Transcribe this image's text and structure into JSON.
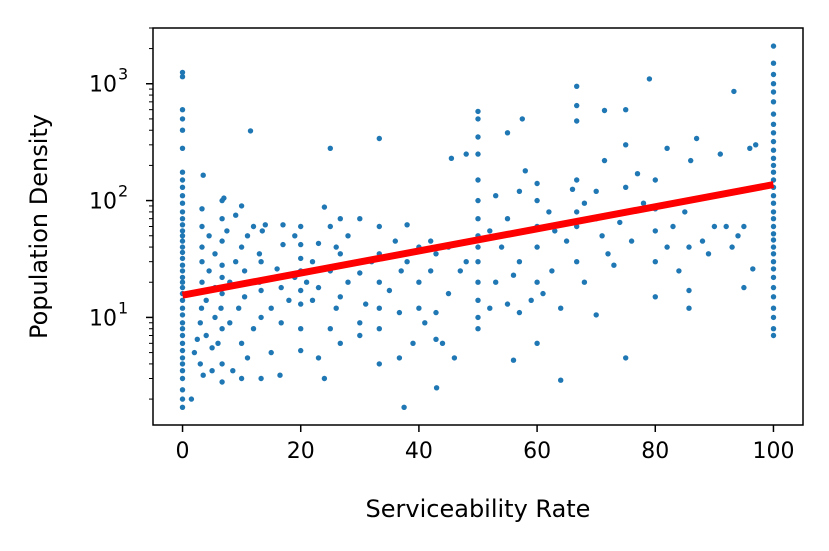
{
  "chart_data": {
    "type": "scatter",
    "xlabel": "Serviceability Rate",
    "ylabel": "Population Density",
    "xlim": [
      -5,
      105
    ],
    "ylim": [
      1.2,
      3000
    ],
    "yscale": "log",
    "grid": false,
    "x_ticks": [
      0,
      20,
      40,
      60,
      80,
      100
    ],
    "x_tick_labels": [
      "0",
      "20",
      "40",
      "60",
      "80",
      "100"
    ],
    "y_ticks": [
      10,
      100,
      1000
    ],
    "y_tick_labels": [
      {
        "base": "10",
        "exp": "1"
      },
      {
        "base": "10",
        "exp": "2"
      },
      {
        "base": "10",
        "exp": "3"
      }
    ],
    "point_color": "#1f77b4",
    "fit_line_color": "#ff0000",
    "fit_line": {
      "x": [
        0,
        100
      ],
      "y": [
        15.5,
        137
      ]
    },
    "scatter_groups": [
      {
        "x": 0,
        "y": [
          1.7,
          2.0,
          2.4,
          3.0,
          3.5,
          4.0,
          4.5,
          5.2,
          6.0,
          7.0,
          8.0,
          9.0,
          10.5,
          12.0,
          14.0,
          16.0,
          18.0,
          20.0,
          22.0,
          25.0,
          28.0,
          32.0,
          36.0,
          40.0,
          45.0,
          50.0,
          55.0,
          62.0,
          70.0,
          80.0,
          95.0,
          110.0,
          130.0,
          150.0,
          175.0,
          280.0,
          400.0,
          500.0,
          600.0,
          1150.0,
          1250.0
        ]
      },
      {
        "x": 100,
        "y": [
          7.0,
          8.0,
          10.0,
          12.0,
          15.0,
          18.0,
          22.0,
          26.0,
          30.0,
          35.0,
          40.0,
          46.0,
          52.0,
          60.0,
          70.0,
          80.0,
          95.0,
          110.0,
          130.0,
          150.0,
          175.0,
          200.0,
          230.0,
          270.0,
          320.0,
          380.0,
          450.0,
          550.0,
          700.0,
          850.0,
          1000.0,
          1200.0,
          1500.0,
          2100.0
        ]
      }
    ],
    "points": [
      [
        1.5,
        2.0
      ],
      [
        2.0,
        5.0
      ],
      [
        2.5,
        6.5
      ],
      [
        3.0,
        4.0
      ],
      [
        3.0,
        9.0
      ],
      [
        3.2,
        12.0
      ],
      [
        3.3,
        20.0
      ],
      [
        3.3,
        30.0
      ],
      [
        3.3,
        40.0
      ],
      [
        3.3,
        60.0
      ],
      [
        3.3,
        85.0
      ],
      [
        3.5,
        165.0
      ],
      [
        3.5,
        3.2
      ],
      [
        4.0,
        7.0
      ],
      [
        4.0,
        14.0
      ],
      [
        4.5,
        25.0
      ],
      [
        4.5,
        50.0
      ],
      [
        5.0,
        3.5
      ],
      [
        5.0,
        5.5
      ],
      [
        5.5,
        10.0
      ],
      [
        5.5,
        18.0
      ],
      [
        5.5,
        35.0
      ],
      [
        6.0,
        6.0
      ],
      [
        6.5,
        12.0
      ],
      [
        6.7,
        2.8
      ],
      [
        6.7,
        4.0
      ],
      [
        6.7,
        8.0
      ],
      [
        6.7,
        16.0
      ],
      [
        6.7,
        22.0
      ],
      [
        6.7,
        28.0
      ],
      [
        6.7,
        45.0
      ],
      [
        6.7,
        70.0
      ],
      [
        6.7,
        100.0
      ],
      [
        7.0,
        105.0
      ],
      [
        7.5,
        55.0
      ],
      [
        8.0,
        9.0
      ],
      [
        8.0,
        20.0
      ],
      [
        8.5,
        3.5
      ],
      [
        9.0,
        75.0
      ],
      [
        9.0,
        30.0
      ],
      [
        9.5,
        12.0
      ],
      [
        10.0,
        3.0
      ],
      [
        10.0,
        6.0
      ],
      [
        10.0,
        40.0
      ],
      [
        10.0,
        90.0
      ],
      [
        10.5,
        15.0
      ],
      [
        10.5,
        25.0
      ],
      [
        11.0,
        4.5
      ],
      [
        11.0,
        50.0
      ],
      [
        11.5,
        395.0
      ],
      [
        12.0,
        8.0
      ],
      [
        12.0,
        60.0
      ],
      [
        13.0,
        20.0
      ],
      [
        13.0,
        35.0
      ],
      [
        13.3,
        3.0
      ],
      [
        13.3,
        10.0
      ],
      [
        13.3,
        17.0
      ],
      [
        13.3,
        30.0
      ],
      [
        13.5,
        55.0
      ],
      [
        14.0,
        62.0
      ],
      [
        15.0,
        5.0
      ],
      [
        15.0,
        12.0
      ],
      [
        16.0,
        26.0
      ],
      [
        16.5,
        3.2
      ],
      [
        16.7,
        9.0
      ],
      [
        16.7,
        18.0
      ],
      [
        17.0,
        42.0
      ],
      [
        17.0,
        62.0
      ],
      [
        18.0,
        14.0
      ],
      [
        19.0,
        22.0
      ],
      [
        19.0,
        50.0
      ],
      [
        20.0,
        5.2
      ],
      [
        20.0,
        8.0
      ],
      [
        20.0,
        13.0
      ],
      [
        20.0,
        17.0
      ],
      [
        20.0,
        25.0
      ],
      [
        20.0,
        32.0
      ],
      [
        20.0,
        42.0
      ],
      [
        20.0,
        60.0
      ],
      [
        21.0,
        20.0
      ],
      [
        22.0,
        14.0
      ],
      [
        22.0,
        30.0
      ],
      [
        23.0,
        4.5
      ],
      [
        23.0,
        18.0
      ],
      [
        23.0,
        43.0
      ],
      [
        24.0,
        3.0
      ],
      [
        24.0,
        88.0
      ],
      [
        25.0,
        8.0
      ],
      [
        25.0,
        25.0
      ],
      [
        25.0,
        60.0
      ],
      [
        25.0,
        280.0
      ],
      [
        26.0,
        12.0
      ],
      [
        26.0,
        40.0
      ],
      [
        26.7,
        6.0
      ],
      [
        26.7,
        15.0
      ],
      [
        26.7,
        35.0
      ],
      [
        26.7,
        70.0
      ],
      [
        28.0,
        20.0
      ],
      [
        28.0,
        50.0
      ],
      [
        30.0,
        9.0
      ],
      [
        30.0,
        24.0
      ],
      [
        30.0,
        70.0
      ],
      [
        30.0,
        7.0
      ],
      [
        31.0,
        13.0
      ],
      [
        32.0,
        30.0
      ],
      [
        33.3,
        4.0
      ],
      [
        33.3,
        8.0
      ],
      [
        33.3,
        12.0
      ],
      [
        33.3,
        20.0
      ],
      [
        33.3,
        35.0
      ],
      [
        33.3,
        60.0
      ],
      [
        33.3,
        340.0
      ],
      [
        35.0,
        17.0
      ],
      [
        36.0,
        45.0
      ],
      [
        36.7,
        4.5
      ],
      [
        36.7,
        11.0
      ],
      [
        37.0,
        25.0
      ],
      [
        37.5,
        1.7
      ],
      [
        38.0,
        62.0
      ],
      [
        38.0,
        30.0
      ],
      [
        39.0,
        6.0
      ],
      [
        40.0,
        12.0
      ],
      [
        40.0,
        20.0
      ],
      [
        40.0,
        40.0
      ],
      [
        41.0,
        9.0
      ],
      [
        42.0,
        25.0
      ],
      [
        42.0,
        45.0
      ],
      [
        42.9,
        6.5
      ],
      [
        42.9,
        11.0
      ],
      [
        42.9,
        35.0
      ],
      [
        43.0,
        2.5
      ],
      [
        44.0,
        6.0
      ],
      [
        45.0,
        16.0
      ],
      [
        45.0,
        40.0
      ],
      [
        45.5,
        230.0
      ],
      [
        46.0,
        4.5
      ],
      [
        47.0,
        25.0
      ],
      [
        48.0,
        30.0
      ],
      [
        48.0,
        250.0
      ],
      [
        50.0,
        8.0
      ],
      [
        50.0,
        10.0
      ],
      [
        50.0,
        14.0
      ],
      [
        50.0,
        20.0
      ],
      [
        50.0,
        30.0
      ],
      [
        50.0,
        40.0
      ],
      [
        50.0,
        50.0
      ],
      [
        50.0,
        70.0
      ],
      [
        50.0,
        100.0
      ],
      [
        50.0,
        150.0
      ],
      [
        50.0,
        250.0
      ],
      [
        50.0,
        350.0
      ],
      [
        50.0,
        500.0
      ],
      [
        50.0,
        580.0
      ],
      [
        52.0,
        12.0
      ],
      [
        52.0,
        55.0
      ],
      [
        53.0,
        20.0
      ],
      [
        53.0,
        110.0
      ],
      [
        54.0,
        40.0
      ],
      [
        55.0,
        13.0
      ],
      [
        55.0,
        70.0
      ],
      [
        55.0,
        380.0
      ],
      [
        56.0,
        4.3
      ],
      [
        56.0,
        23.0
      ],
      [
        57.0,
        11.0
      ],
      [
        57.0,
        30.0
      ],
      [
        57.0,
        120.0
      ],
      [
        57.5,
        500.0
      ],
      [
        58.0,
        180.0
      ],
      [
        59.0,
        14.0
      ],
      [
        60.0,
        6.0
      ],
      [
        60.0,
        20.0
      ],
      [
        60.0,
        40.0
      ],
      [
        60.0,
        60.0
      ],
      [
        60.0,
        100.0
      ],
      [
        60.0,
        140.0
      ],
      [
        61.0,
        16.0
      ],
      [
        62.0,
        80.0
      ],
      [
        62.5,
        25.0
      ],
      [
        63.0,
        55.0
      ],
      [
        64.0,
        2.9
      ],
      [
        64.0,
        12.0
      ],
      [
        65.0,
        45.0
      ],
      [
        66.0,
        125.0
      ],
      [
        66.7,
        30.0
      ],
      [
        66.7,
        60.0
      ],
      [
        66.7,
        80.0
      ],
      [
        66.7,
        150.0
      ],
      [
        66.7,
        480.0
      ],
      [
        66.7,
        650.0
      ],
      [
        66.7,
        950.0
      ],
      [
        68.0,
        20.0
      ],
      [
        68.0,
        95.0
      ],
      [
        70.0,
        10.5
      ],
      [
        70.0,
        70.0
      ],
      [
        70.0,
        120.0
      ],
      [
        71.0,
        50.0
      ],
      [
        71.4,
        220.0
      ],
      [
        71.4,
        590.0
      ],
      [
        72.0,
        35.0
      ],
      [
        73.0,
        28.0
      ],
      [
        74.0,
        65.0
      ],
      [
        75.0,
        4.5
      ],
      [
        75.0,
        80.0
      ],
      [
        75.0,
        130.0
      ],
      [
        75.0,
        300.0
      ],
      [
        75.0,
        600.0
      ],
      [
        76.0,
        45.0
      ],
      [
        77.0,
        170.0
      ],
      [
        78.0,
        95.0
      ],
      [
        79.0,
        1100.0
      ],
      [
        80.0,
        15.0
      ],
      [
        80.0,
        30.0
      ],
      [
        80.0,
        55.0
      ],
      [
        80.0,
        85.0
      ],
      [
        80.0,
        150.0
      ],
      [
        82.0,
        40.0
      ],
      [
        82.0,
        280.0
      ],
      [
        83.0,
        60.0
      ],
      [
        84.0,
        25.0
      ],
      [
        85.0,
        80.0
      ],
      [
        85.7,
        12.0
      ],
      [
        85.7,
        17.0
      ],
      [
        85.7,
        40.0
      ],
      [
        86.0,
        220.0
      ],
      [
        87.0,
        340.0
      ],
      [
        88.0,
        45.0
      ],
      [
        89.0,
        35.0
      ],
      [
        90.0,
        60.0
      ],
      [
        91.0,
        250.0
      ],
      [
        92.0,
        60.0
      ],
      [
        93.0,
        40.0
      ],
      [
        93.3,
        860.0
      ],
      [
        94.0,
        50.0
      ],
      [
        95.0,
        18.0
      ],
      [
        95.0,
        60.0
      ],
      [
        96.0,
        280.0
      ],
      [
        96.5,
        26.0
      ],
      [
        97.0,
        300.0
      ]
    ]
  }
}
